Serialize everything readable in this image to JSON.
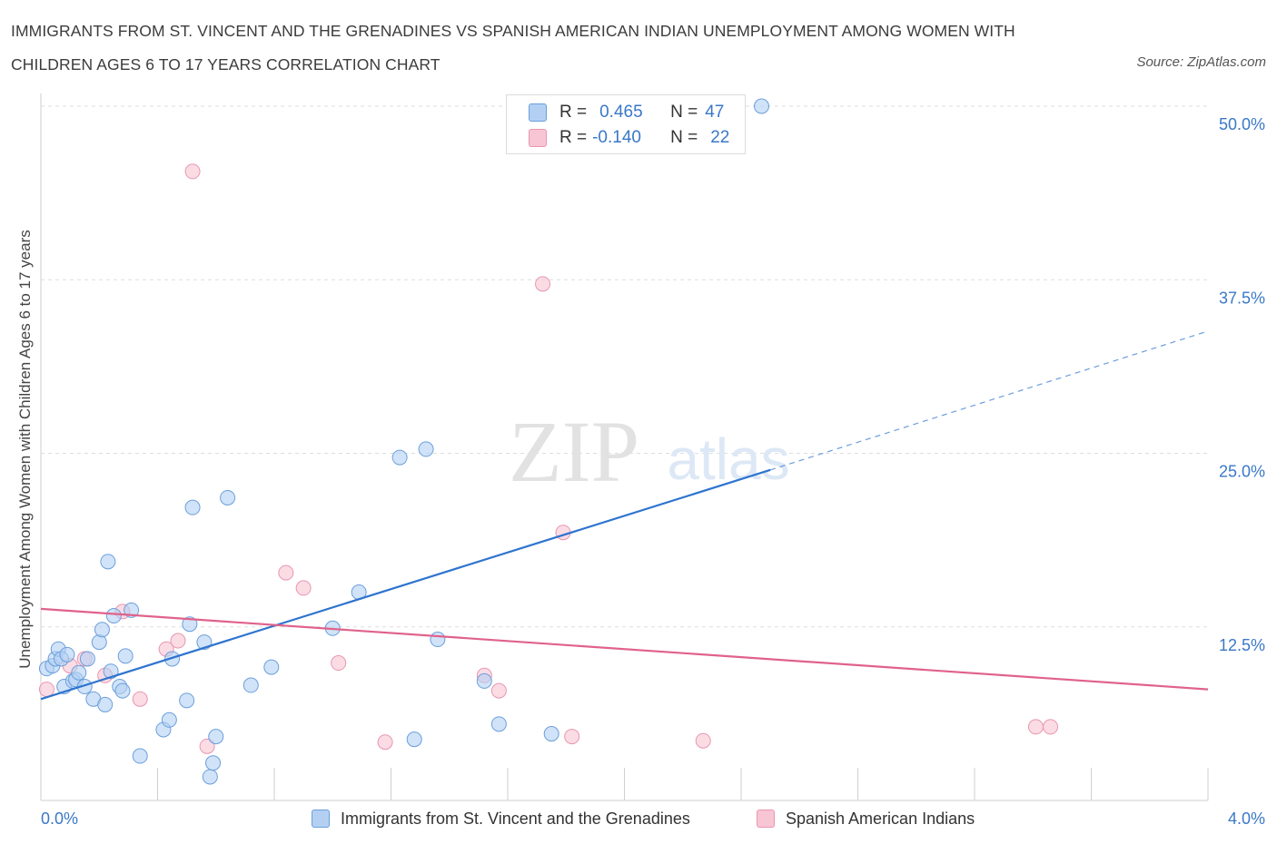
{
  "title": "IMMIGRANTS FROM ST. VINCENT AND THE GRENADINES VS SPANISH AMERICAN INDIAN UNEMPLOYMENT AMONG WOMEN WITH CHILDREN AGES 6 TO 17 YEARS CORRELATION CHART",
  "source": "Source: ZipAtlas.com",
  "watermark": {
    "zip": "ZIP",
    "atlas": "atlas"
  },
  "legend_top": {
    "row1": {
      "r_label": "R =",
      "r_value": "0.465",
      "n_label": "N =",
      "n_value": "47"
    },
    "row2": {
      "r_label": "R =",
      "r_value": "-0.140",
      "n_label": "N =",
      "n_value": "22"
    }
  },
  "colors": {
    "blue_fill": "#b3d0f3",
    "blue_stroke": "#6b9fdb",
    "blue_line": "#2e74cf",
    "pink_fill": "#f8c5d4",
    "pink_stroke": "#e896b0",
    "pink_line": "#e0628b",
    "tick_label": "#3a78c8",
    "grid": "#dedede"
  },
  "chart_data": {
    "type": "scatter",
    "xlabel": "",
    "ylabel": "Unemployment Among Women with Children Ages 6 to 17 years",
    "xlim": [
      0,
      4.0
    ],
    "ylim": [
      0,
      50.0
    ],
    "x_tick_labels": [
      "0.0%",
      "4.0%"
    ],
    "y_ticks": [
      12.5,
      25.0,
      37.5,
      50.0
    ],
    "y_tick_labels": [
      "12.5%",
      "25.0%",
      "37.5%",
      "50.0%"
    ],
    "grid": "horizontal dashed",
    "legend_position": "top-center",
    "series": [
      {
        "name": "Immigrants from St. Vincent and the Grenadines",
        "color": "blue",
        "points": [
          [
            0.02,
            9.5
          ],
          [
            0.04,
            9.7
          ],
          [
            0.05,
            10.2
          ],
          [
            0.06,
            10.9
          ],
          [
            0.07,
            10.2
          ],
          [
            0.08,
            8.2
          ],
          [
            0.09,
            10.5
          ],
          [
            0.11,
            8.6
          ],
          [
            0.12,
            8.7
          ],
          [
            0.13,
            9.2
          ],
          [
            0.15,
            8.2
          ],
          [
            0.16,
            10.2
          ],
          [
            0.18,
            7.3
          ],
          [
            0.2,
            11.4
          ],
          [
            0.21,
            12.3
          ],
          [
            0.22,
            6.9
          ],
          [
            0.23,
            17.2
          ],
          [
            0.24,
            9.3
          ],
          [
            0.25,
            13.3
          ],
          [
            0.27,
            8.2
          ],
          [
            0.28,
            7.9
          ],
          [
            0.29,
            10.4
          ],
          [
            0.31,
            13.7
          ],
          [
            0.34,
            3.2
          ],
          [
            0.42,
            5.1
          ],
          [
            0.44,
            5.8
          ],
          [
            0.45,
            10.2
          ],
          [
            0.5,
            7.2
          ],
          [
            0.51,
            12.7
          ],
          [
            0.52,
            21.1
          ],
          [
            0.56,
            11.4
          ],
          [
            0.58,
            1.7
          ],
          [
            0.59,
            2.7
          ],
          [
            0.6,
            4.6
          ],
          [
            0.64,
            21.8
          ],
          [
            0.72,
            8.3
          ],
          [
            0.79,
            9.6
          ],
          [
            1.0,
            12.4
          ],
          [
            1.09,
            15.0
          ],
          [
            1.23,
            24.7
          ],
          [
            1.28,
            4.4
          ],
          [
            1.32,
            25.3
          ],
          [
            1.36,
            11.6
          ],
          [
            1.52,
            8.6
          ],
          [
            1.57,
            5.5
          ],
          [
            1.75,
            4.8
          ],
          [
            2.47,
            50.0
          ]
        ],
        "trend": {
          "x": [
            0.0,
            2.5
          ],
          "y": [
            7.3,
            23.8
          ],
          "extended_x": [
            2.5,
            4.0
          ],
          "extended_y": [
            23.8,
            33.8
          ]
        }
      },
      {
        "name": "Spanish American Indians",
        "color": "pink",
        "points": [
          [
            0.02,
            8.0
          ],
          [
            0.1,
            9.7
          ],
          [
            0.15,
            10.2
          ],
          [
            0.22,
            9.0
          ],
          [
            0.28,
            13.6
          ],
          [
            0.34,
            7.3
          ],
          [
            0.43,
            10.9
          ],
          [
            0.47,
            11.5
          ],
          [
            0.52,
            45.3
          ],
          [
            0.57,
            3.9
          ],
          [
            0.84,
            16.4
          ],
          [
            0.9,
            15.3
          ],
          [
            1.02,
            9.9
          ],
          [
            1.18,
            4.2
          ],
          [
            1.52,
            9.0
          ],
          [
            1.57,
            7.9
          ],
          [
            1.72,
            37.2
          ],
          [
            1.79,
            19.3
          ],
          [
            1.82,
            4.6
          ],
          [
            2.27,
            4.3
          ],
          [
            3.41,
            5.3
          ],
          [
            3.46,
            5.3
          ]
        ],
        "trend": {
          "x": [
            0.0,
            4.0
          ],
          "y": [
            13.8,
            8.0
          ]
        }
      }
    ]
  },
  "bottom_legend": {
    "item1": "Immigrants from St. Vincent and the Grenadines",
    "item2": "Spanish American Indians"
  }
}
